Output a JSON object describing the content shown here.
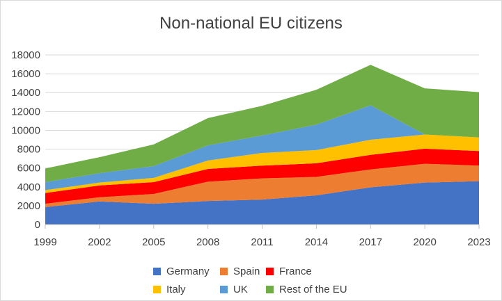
{
  "chart_data": {
    "type": "area",
    "stacked": true,
    "title": "Non-national EU citizens",
    "xlabel": "",
    "ylabel": "",
    "categories": [
      "1999",
      "2002",
      "2005",
      "2008",
      "2011",
      "2014",
      "2017",
      "2020",
      "2023"
    ],
    "ylim": [
      0,
      18000
    ],
    "yticks": [
      0,
      2000,
      4000,
      6000,
      8000,
      10000,
      12000,
      14000,
      16000,
      18000
    ],
    "grid": true,
    "legend_position": "bottom",
    "series": [
      {
        "name": "Germany",
        "color": "#4472c4",
        "values": [
          1850,
          2450,
          2200,
          2500,
          2650,
          3100,
          3950,
          4450,
          4600
        ]
      },
      {
        "name": "Spain",
        "color": "#ed7d31",
        "values": [
          350,
          450,
          1050,
          2050,
          2250,
          1950,
          1900,
          2000,
          1650
        ]
      },
      {
        "name": "France",
        "color": "#ff0000",
        "values": [
          1150,
          1250,
          1250,
          1350,
          1350,
          1450,
          1550,
          1600,
          1550
        ]
      },
      {
        "name": "Italy",
        "color": "#ffc000",
        "values": [
          300,
          300,
          450,
          900,
          1350,
          1400,
          1600,
          1500,
          1450
        ]
      },
      {
        "name": "UK",
        "color": "#5b9bd5",
        "values": [
          850,
          1000,
          1250,
          1600,
          1850,
          2700,
          3650,
          0,
          0
        ]
      },
      {
        "name": "Rest of the EU",
        "color": "#70ad47",
        "values": [
          1450,
          1700,
          2300,
          2900,
          3150,
          3700,
          4300,
          4900,
          4800
        ]
      }
    ]
  }
}
